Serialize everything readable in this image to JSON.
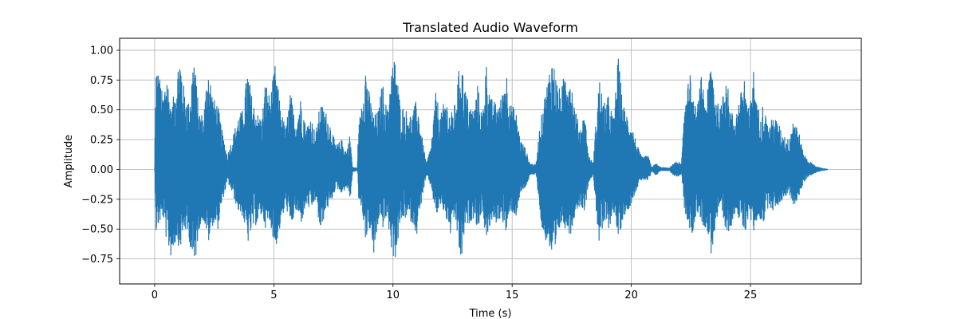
{
  "chart_data": {
    "type": "line",
    "title": "Translated Audio Waveform",
    "xlabel": "Time (s)",
    "ylabel": "Amplitude",
    "xlim": [
      -1.47,
      29.65
    ],
    "ylim": [
      -0.96,
      1.1
    ],
    "xticks": [
      0,
      5,
      10,
      15,
      20,
      25
    ],
    "xtick_labels": [
      "0",
      "5",
      "10",
      "15",
      "20",
      "25"
    ],
    "yticks": [
      -0.75,
      -0.5,
      -0.25,
      0.0,
      0.25,
      0.5,
      0.75,
      1.0
    ],
    "ytick_labels": [
      "−0.75",
      "−0.50",
      "−0.25",
      "0.00",
      "0.25",
      "0.50",
      "0.75",
      "1.00"
    ],
    "grid": true,
    "line_color": "#1f77b4",
    "duration_s": 28.25,
    "envelope": {
      "description_points": "time (s), max amplitude, min amplitude",
      "points": [
        [
          0.0,
          0.02,
          -0.03
        ],
        [
          0.05,
          0.88,
          -0.53
        ],
        [
          0.2,
          0.8,
          -0.45
        ],
        [
          0.35,
          0.6,
          -0.4
        ],
        [
          0.5,
          0.85,
          -0.62
        ],
        [
          0.7,
          0.5,
          -0.75
        ],
        [
          0.9,
          0.75,
          -0.58
        ],
        [
          1.05,
          0.99,
          -0.68
        ],
        [
          1.25,
          0.66,
          -0.5
        ],
        [
          1.45,
          0.55,
          -0.6
        ],
        [
          1.65,
          0.99,
          -0.87
        ],
        [
          1.85,
          0.5,
          -0.5
        ],
        [
          2.05,
          0.45,
          -0.42
        ],
        [
          2.25,
          0.9,
          -0.62
        ],
        [
          2.45,
          0.6,
          -0.45
        ],
        [
          2.65,
          0.55,
          -0.5
        ],
        [
          2.85,
          0.3,
          -0.25
        ],
        [
          3.05,
          0.12,
          -0.1
        ],
        [
          3.25,
          0.25,
          -0.2
        ],
        [
          3.5,
          0.45,
          -0.35
        ],
        [
          3.7,
          0.5,
          -0.4
        ],
        [
          3.9,
          0.85,
          -0.62
        ],
        [
          4.1,
          0.58,
          -0.5
        ],
        [
          4.3,
          0.48,
          -0.45
        ],
        [
          4.5,
          0.42,
          -0.38
        ],
        [
          4.65,
          0.75,
          -0.5
        ],
        [
          4.85,
          0.6,
          -0.45
        ],
        [
          5.05,
          0.88,
          -0.68
        ],
        [
          5.3,
          0.5,
          -0.45
        ],
        [
          5.5,
          0.35,
          -0.3
        ],
        [
          5.7,
          0.65,
          -0.5
        ],
        [
          5.9,
          0.4,
          -0.35
        ],
        [
          6.15,
          0.62,
          -0.45
        ],
        [
          6.35,
          0.35,
          -0.3
        ],
        [
          6.55,
          0.45,
          -0.35
        ],
        [
          6.75,
          0.3,
          -0.25
        ],
        [
          6.95,
          0.56,
          -0.55
        ],
        [
          7.15,
          0.5,
          -0.35
        ],
        [
          7.35,
          0.4,
          -0.3
        ],
        [
          7.6,
          0.2,
          -0.15
        ],
        [
          7.85,
          0.25,
          -0.2
        ],
        [
          8.05,
          0.15,
          -0.15
        ],
        [
          8.2,
          0.3,
          -0.25
        ],
        [
          8.3,
          0.02,
          -0.02
        ],
        [
          8.5,
          0.01,
          -0.01
        ],
        [
          8.55,
          0.32,
          -0.25
        ],
        [
          8.7,
          0.62,
          -0.35
        ],
        [
          8.85,
          0.88,
          -0.6
        ],
        [
          9.0,
          0.65,
          -0.5
        ],
        [
          9.2,
          0.45,
          -0.75
        ],
        [
          9.4,
          0.5,
          -0.4
        ],
        [
          9.55,
          0.75,
          -0.5
        ],
        [
          9.75,
          0.5,
          -0.4
        ],
        [
          9.95,
          0.87,
          -0.72
        ],
        [
          10.1,
          0.95,
          -0.75
        ],
        [
          10.3,
          0.55,
          -0.45
        ],
        [
          10.55,
          0.5,
          -0.4
        ],
        [
          10.8,
          0.45,
          -0.45
        ],
        [
          11.0,
          0.6,
          -0.55
        ],
        [
          11.2,
          0.3,
          -0.25
        ],
        [
          11.4,
          0.05,
          -0.05
        ],
        [
          11.6,
          0.2,
          -0.15
        ],
        [
          11.8,
          0.65,
          -0.4
        ],
        [
          12.0,
          0.45,
          -0.3
        ],
        [
          12.2,
          0.62,
          -0.4
        ],
        [
          12.4,
          0.45,
          -0.55
        ],
        [
          12.6,
          0.55,
          -0.4
        ],
        [
          12.85,
          0.97,
          -0.82
        ],
        [
          13.0,
          0.7,
          -0.5
        ],
        [
          13.2,
          0.55,
          -0.45
        ],
        [
          13.4,
          0.5,
          -0.4
        ],
        [
          13.55,
          0.72,
          -0.5
        ],
        [
          13.75,
          0.45,
          -0.35
        ],
        [
          13.9,
          0.92,
          -0.6
        ],
        [
          14.1,
          0.6,
          -0.45
        ],
        [
          14.35,
          0.55,
          -0.45
        ],
        [
          14.55,
          0.6,
          -0.4
        ],
        [
          14.75,
          0.85,
          -0.55
        ],
        [
          14.95,
          0.55,
          -0.35
        ],
        [
          15.15,
          0.5,
          -0.4
        ],
        [
          15.35,
          0.25,
          -0.2
        ],
        [
          15.55,
          0.18,
          -0.15
        ],
        [
          15.75,
          0.05,
          -0.05
        ],
        [
          16.0,
          0.04,
          -0.04
        ],
        [
          16.15,
          0.35,
          -0.35
        ],
        [
          16.3,
          0.55,
          -0.6
        ],
        [
          16.45,
          0.7,
          -0.6
        ],
        [
          16.6,
          0.9,
          -0.7
        ],
        [
          16.7,
          0.95,
          -0.9
        ],
        [
          16.9,
          0.72,
          -0.6
        ],
        [
          17.05,
          0.65,
          -0.45
        ],
        [
          17.25,
          0.88,
          -0.5
        ],
        [
          17.45,
          0.8,
          -0.55
        ],
        [
          17.65,
          0.5,
          -0.35
        ],
        [
          17.85,
          0.35,
          -0.3
        ],
        [
          18.05,
          0.48,
          -0.35
        ],
        [
          18.2,
          0.12,
          -0.1
        ],
        [
          18.4,
          0.05,
          -0.05
        ],
        [
          18.5,
          0.35,
          -0.3
        ],
        [
          18.65,
          0.78,
          -0.65
        ],
        [
          18.85,
          0.55,
          -0.45
        ],
        [
          19.05,
          0.62,
          -0.5
        ],
        [
          19.25,
          0.42,
          -0.35
        ],
        [
          19.45,
          0.95,
          -0.6
        ],
        [
          19.65,
          0.55,
          -0.4
        ],
        [
          19.85,
          0.45,
          -0.35
        ],
        [
          20.05,
          0.35,
          -0.25
        ],
        [
          20.25,
          0.2,
          -0.15
        ],
        [
          20.45,
          0.1,
          -0.08
        ],
        [
          20.7,
          0.12,
          -0.1
        ],
        [
          20.85,
          0.02,
          -0.02
        ],
        [
          21.05,
          0.05,
          -0.05
        ],
        [
          21.2,
          0.02,
          -0.01
        ],
        [
          21.6,
          0.01,
          -0.01
        ],
        [
          21.75,
          0.05,
          -0.05
        ],
        [
          21.95,
          0.07,
          -0.06
        ],
        [
          22.1,
          0.04,
          -0.04
        ],
        [
          22.25,
          0.55,
          -0.4
        ],
        [
          22.4,
          0.97,
          -0.5
        ],
        [
          22.55,
          0.6,
          -0.55
        ],
        [
          22.75,
          0.5,
          -0.35
        ],
        [
          22.95,
          0.8,
          -0.45
        ],
        [
          23.15,
          0.55,
          -0.5
        ],
        [
          23.35,
          0.97,
          -0.72
        ],
        [
          23.55,
          0.6,
          -0.45
        ],
        [
          23.75,
          0.5,
          -0.35
        ],
        [
          23.95,
          0.9,
          -0.55
        ],
        [
          24.15,
          0.5,
          -0.5
        ],
        [
          24.35,
          0.45,
          -0.35
        ],
        [
          24.55,
          0.6,
          -0.45
        ],
        [
          24.75,
          0.8,
          -0.55
        ],
        [
          24.95,
          0.45,
          -0.35
        ],
        [
          25.1,
          0.9,
          -0.55
        ],
        [
          25.3,
          0.5,
          -0.4
        ],
        [
          25.55,
          0.55,
          -0.45
        ],
        [
          25.75,
          0.35,
          -0.3
        ],
        [
          25.95,
          0.45,
          -0.35
        ],
        [
          26.15,
          0.4,
          -0.3
        ],
        [
          26.35,
          0.3,
          -0.25
        ],
        [
          26.6,
          0.25,
          -0.2
        ],
        [
          26.8,
          0.45,
          -0.3
        ],
        [
          27.0,
          0.35,
          -0.25
        ],
        [
          27.2,
          0.15,
          -0.12
        ],
        [
          27.4,
          0.08,
          -0.06
        ],
        [
          27.6,
          0.05,
          -0.04
        ],
        [
          27.8,
          0.02,
          -0.02
        ],
        [
          28.0,
          0.01,
          -0.01
        ],
        [
          28.25,
          0.0,
          0.0
        ]
      ]
    }
  }
}
